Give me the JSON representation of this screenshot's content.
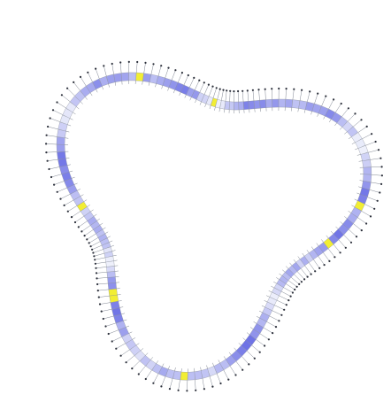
{
  "figure": {
    "kind": "surface-normals-plot",
    "shape": "three-lobed closed curve",
    "cell_count": 150,
    "normals_drawn": true,
    "colors": {
      "background": "#ffffff",
      "low_value": "#eef0fb",
      "high_value": "#6f73e6",
      "highlight": "#f2ee33",
      "normal_line": "#7f8592",
      "normal_tip": "#2b2f3a"
    },
    "highlight_fraction": 0.12
  }
}
